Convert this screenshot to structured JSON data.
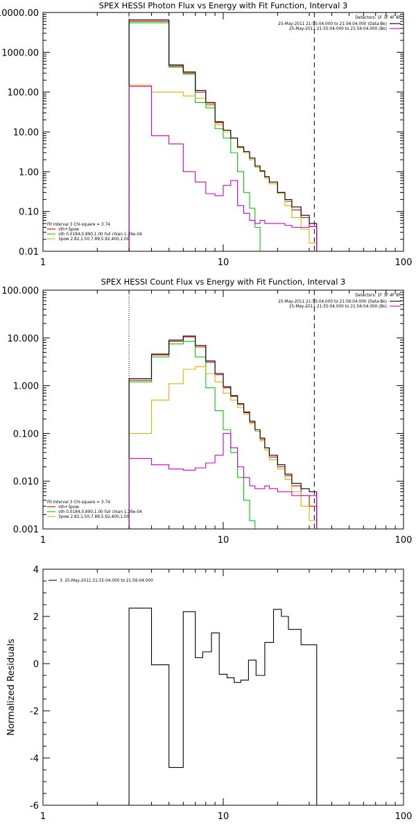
{
  "colors": {
    "data": "#000000",
    "total": "#d40000",
    "vth": "#00c800",
    "bpow": "#d4b400",
    "bkg": "#c800c8",
    "axis": "#000000"
  },
  "chart_data": [
    {
      "type": "line",
      "title": "SPEX HESSI Photon Flux vs Energy with Fit Function, Interval 3",
      "xlabel": "",
      "ylabel": "",
      "xscale": "log",
      "yscale": "log",
      "xlim": [
        1,
        100
      ],
      "ylim": [
        0.01,
        10000
      ],
      "grid": false,
      "xticks": [
        "1",
        "10",
        "100"
      ],
      "yticks": [
        "10000.00",
        "1000.00",
        "100.00",
        "10.00",
        "1.00",
        "0.10",
        "0.01"
      ],
      "ytick_values": [
        10000,
        1000,
        100,
        10,
        1,
        0.1,
        0.01
      ],
      "legend_top": {
        "position": "top-right",
        "header": "Detectors: 1F 3F 4F 8F",
        "entries": [
          {
            "label": "25-May-2011 21:55:04.000 to 21:56:04.000 (Data-Bk)",
            "color_key": "data"
          },
          {
            "label": "25-May-2011 21:55:04.000 to 21:56:04.000 (Bk)",
            "color_key": "bkg"
          }
        ]
      },
      "legend_bottom": {
        "position": "bottom-left",
        "header": "Fit Interval 3   Chi-square = 3.74",
        "entries": [
          {
            "label": "vth+3pow",
            "color_key": "total"
          },
          {
            "label": "vth 0.0184,0.890,1.00  full chian 1.26e-04",
            "color_key": "vth"
          },
          {
            "label": "3pow 2.82,1.50,7.89,5.92,400,1.00",
            "color_key": "bpow"
          }
        ]
      },
      "vline_dotted": 3.0,
      "vline_dashed": 32.0,
      "bin_edges": [
        3.0,
        4.0,
        5.0,
        6.0,
        7.0,
        8.0,
        9.0,
        10.0,
        11.0,
        12.0,
        13.0,
        14.0,
        15.0,
        16.0,
        17.0,
        18.0,
        20.0,
        22.0,
        24.0,
        27.0,
        30.0,
        33.0
      ],
      "series": [
        {
          "name": "vth+3pow",
          "color_key": "total",
          "values": [
            6000,
            6000,
            450,
            300,
            100,
            50,
            17,
            10,
            7,
            4,
            3,
            2,
            1.3,
            1.0,
            0.7,
            0.5,
            0.3,
            0.18,
            0.11,
            0.07,
            0.042
          ]
        },
        {
          "name": "vth",
          "color_key": "vth",
          "values": [
            5500,
            5500,
            420,
            280,
            55,
            40,
            12,
            7,
            3,
            1.0,
            0.3,
            0.12,
            0.04,
            0.0,
            0.0,
            0.0,
            0.0,
            0.0,
            0.0,
            0.0,
            0.0
          ]
        },
        {
          "name": "3pow",
          "color_key": "bpow",
          "values": [
            150,
            100,
            100,
            80,
            70,
            45,
            15,
            10,
            7,
            4,
            3,
            2,
            1.3,
            1.0,
            0.7,
            0.5,
            0.28,
            0.14,
            0.07,
            0.036,
            0.016
          ]
        },
        {
          "name": "Data-Bk",
          "color_key": "data",
          "values": [
            6500,
            6500,
            480,
            320,
            110,
            55,
            18,
            11,
            7,
            4.2,
            3.2,
            2.2,
            1.4,
            1.05,
            0.75,
            0.55,
            0.3,
            0.2,
            0.13,
            0.08,
            0.05
          ]
        },
        {
          "name": "Bk",
          "color_key": "bkg",
          "values": [
            140,
            8,
            5,
            1.0,
            0.55,
            0.28,
            0.25,
            0.45,
            0.6,
            0.14,
            0.09,
            0.06,
            0.05,
            0.06,
            0.05,
            0.05,
            0.05,
            0.045,
            0.04,
            0.04,
            0.042
          ]
        }
      ]
    },
    {
      "type": "line",
      "title": "SPEX HESSI Count Flux vs Energy with Fit Function, Interval 3",
      "xlabel": "",
      "ylabel": "",
      "xscale": "log",
      "yscale": "log",
      "xlim": [
        1,
        100
      ],
      "ylim": [
        0.001,
        100
      ],
      "grid": false,
      "xticks": [
        "1",
        "10",
        "100"
      ],
      "yticks": [
        "100.000",
        "10.000",
        "1.000",
        "0.100",
        "0.010",
        "0.001"
      ],
      "ytick_values": [
        100,
        10,
        1,
        0.1,
        0.01,
        0.001
      ],
      "legend_top": {
        "position": "top-right",
        "header": "Detectors: 1F 3F 4F 8F",
        "entries": [
          {
            "label": "25-May-2011 21:55:04.000 to 21:56:04.000 (Data-Bk)",
            "color_key": "data"
          },
          {
            "label": "25-May-2011 21:55:04.000 to 21:56:04.000 (Bk)",
            "color_key": "bkg"
          }
        ]
      },
      "legend_bottom": {
        "position": "bottom-left",
        "header": "Fit Interval 3   Chi-square = 3.74",
        "entries": [
          {
            "label": "vth+3pow",
            "color_key": "total"
          },
          {
            "label": "vth 0.0184,0.890,1.00  full chian 1.26e-04",
            "color_key": "vth"
          },
          {
            "label": "3pow 2.82,1.50,7.89,5.92,400,1.00",
            "color_key": "bpow"
          }
        ]
      },
      "vline_dotted": 3.0,
      "vline_dashed": 32.0,
      "bin_edges": [
        3.0,
        4.0,
        5.0,
        6.0,
        7.0,
        8.0,
        9.0,
        10.0,
        11.0,
        12.0,
        13.0,
        14.0,
        15.0,
        16.0,
        17.0,
        18.0,
        20.0,
        22.0,
        24.0,
        27.0,
        30.0,
        33.0
      ],
      "series": [
        {
          "name": "vth+3pow",
          "color_key": "total",
          "values": [
            1.3,
            4.4,
            8.5,
            10.5,
            6.5,
            3.1,
            1.7,
            0.9,
            0.6,
            0.4,
            0.27,
            0.17,
            0.12,
            0.075,
            0.05,
            0.032,
            0.02,
            0.013,
            0.008,
            0.005,
            0.003
          ]
        },
        {
          "name": "vth",
          "color_key": "vth",
          "values": [
            1.2,
            4.0,
            7.5,
            8.5,
            4.0,
            0.9,
            0.3,
            0.12,
            0.04,
            0.012,
            0.004,
            0.0015,
            0.0,
            0.0,
            0.0,
            0.0,
            0.0,
            0.0,
            0.0,
            0.0,
            0.0
          ]
        },
        {
          "name": "3pow",
          "color_key": "bpow",
          "values": [
            0.1,
            0.5,
            1.1,
            2.2,
            2.5,
            1.8,
            1.2,
            0.7,
            0.5,
            0.35,
            0.25,
            0.16,
            0.11,
            0.07,
            0.045,
            0.028,
            0.018,
            0.011,
            0.006,
            0.003,
            0.0015
          ]
        },
        {
          "name": "Data-Bk",
          "color_key": "data",
          "values": [
            1.4,
            4.6,
            9.0,
            11.0,
            7.0,
            3.3,
            1.8,
            0.95,
            0.62,
            0.42,
            0.28,
            0.18,
            0.12,
            0.08,
            0.05,
            0.035,
            0.022,
            0.014,
            0.009,
            0.007,
            0.006
          ]
        },
        {
          "name": "Bk",
          "color_key": "bkg",
          "values": [
            0.03,
            0.022,
            0.018,
            0.017,
            0.019,
            0.024,
            0.035,
            0.1,
            0.05,
            0.02,
            0.012,
            0.008,
            0.007,
            0.007,
            0.008,
            0.007,
            0.006,
            0.006,
            0.005,
            0.005,
            0.005
          ]
        }
      ]
    },
    {
      "type": "line",
      "title": "",
      "xlabel": "",
      "ylabel": "Normalized Residuals",
      "xscale": "log",
      "yscale": "linear",
      "xlim": [
        1,
        100
      ],
      "ylim": [
        -6,
        4
      ],
      "grid": false,
      "xticks": [
        "1",
        "10",
        "100"
      ],
      "yticks": [
        "4",
        "2",
        "0",
        "-2",
        "-4",
        "-6"
      ],
      "ytick_values": [
        4,
        2,
        0,
        -2,
        -4,
        -6
      ],
      "legend_top": {
        "position": "top-left",
        "header": "",
        "entries": [
          {
            "label": "3. 25-May-2011 21:55:04.000 to 21:56:04.000",
            "color_key": "data"
          }
        ]
      },
      "vline_dotted": null,
      "vline_dashed": null,
      "bin_edges": [
        3.0,
        4.0,
        5.0,
        6.0,
        7.0,
        8.0,
        9.0,
        10.0,
        11.0,
        12.0,
        13.0,
        14.0,
        15.0,
        16.0,
        17.0,
        18.0,
        20.0,
        22.0,
        24.0,
        27.0,
        30.0,
        33.0
      ],
      "series": [
        {
          "name": "residuals",
          "color_key": "data",
          "values": [
            2.35,
            -0.05,
            -4.4,
            2.2,
            0.25,
            0.5,
            1.3,
            -0.45,
            -0.6,
            -0.8,
            -0.7,
            0.15,
            -0.5,
            0.9,
            2.3,
            2.0,
            1.45,
            0.8
          ]
        }
      ],
      "residual_edges": [
        3.0,
        4.0,
        5.0,
        6.0,
        7.0,
        7.7,
        8.6,
        9.5,
        10.5,
        11.5,
        12.5,
        13.8,
        15.2,
        17.0,
        19.0,
        21.0,
        23.0,
        27.0,
        33.0
      ]
    }
  ]
}
